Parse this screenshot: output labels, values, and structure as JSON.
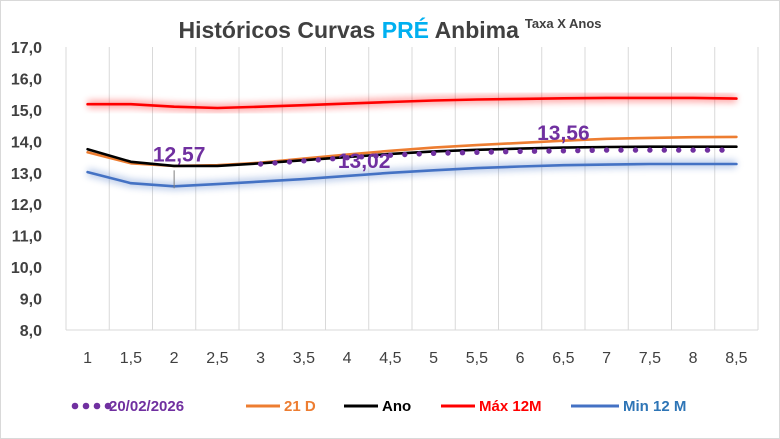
{
  "chart_data": {
    "type": "line",
    "title": {
      "main": "Históricos Curvas ",
      "highlight": "PRÉ",
      "suffix": " Anbima",
      "superscript": "Taxa X Anos"
    },
    "x": [
      1,
      1.5,
      2,
      2.5,
      3,
      3.5,
      4,
      4.5,
      5,
      5.5,
      6,
      6.5,
      7,
      7.5,
      8,
      8.5
    ],
    "x_tick_labels": [
      "1",
      "1,5",
      "2",
      "2,5",
      "3",
      "3,5",
      "4",
      "4,5",
      "5",
      "5,5",
      "6",
      "6,5",
      "7",
      "7,5",
      "8",
      "8,5"
    ],
    "y_tick_labels": [
      "8,0",
      "9,0",
      "10,0",
      "11,0",
      "12,0",
      "13,0",
      "14,0",
      "15,0",
      "16,0",
      "17,0"
    ],
    "ylim": [
      8,
      17
    ],
    "grid": "vertical",
    "legend_position": "bottom",
    "series": [
      {
        "name": "20/02/2026",
        "color": "#7030a0",
        "style": "dotted",
        "values": [
          13.65,
          13.25,
          13.2,
          13.2,
          13.28,
          13.38,
          13.48,
          13.56,
          13.62,
          13.65,
          13.68,
          13.7,
          13.72,
          13.72,
          13.72,
          13.72
        ]
      },
      {
        "name": "21 D",
        "color": "#ed7d31",
        "style": "solid",
        "values": [
          13.65,
          13.3,
          13.22,
          13.24,
          13.32,
          13.45,
          13.58,
          13.7,
          13.8,
          13.88,
          13.95,
          14.02,
          14.08,
          14.11,
          14.13,
          14.14
        ]
      },
      {
        "name": "Ano",
        "color": "#000000",
        "style": "solid",
        "values": [
          13.75,
          13.35,
          13.22,
          13.22,
          13.3,
          13.4,
          13.5,
          13.6,
          13.68,
          13.73,
          13.77,
          13.8,
          13.82,
          13.83,
          13.83,
          13.83
        ]
      },
      {
        "name": "Máx 12M",
        "color": "#ff0000",
        "style": "solid",
        "values": [
          15.18,
          15.18,
          15.1,
          15.06,
          15.1,
          15.15,
          15.2,
          15.25,
          15.3,
          15.33,
          15.35,
          15.37,
          15.38,
          15.38,
          15.38,
          15.36
        ]
      },
      {
        "name": "Min 12 M",
        "color": "#4472c4",
        "style": "solid",
        "values": [
          13.02,
          12.67,
          12.57,
          12.64,
          12.72,
          12.8,
          12.9,
          13.0,
          13.08,
          13.15,
          13.2,
          13.24,
          13.26,
          13.28,
          13.28,
          13.28
        ]
      }
    ],
    "annotations": [
      {
        "text": "12,57",
        "x": 2,
        "y": 12.57
      },
      {
        "text": "13,02",
        "x": 4,
        "y": 13.02
      },
      {
        "text": "13,56",
        "x": 6.5,
        "y": 13.56
      }
    ]
  }
}
